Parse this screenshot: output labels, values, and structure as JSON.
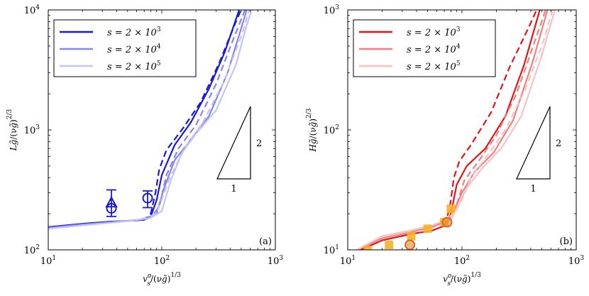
{
  "chart_data": [
    {
      "id": "a",
      "type": "line",
      "panel_label": "(a)",
      "xscale": "log",
      "yscale": "log",
      "xlim": [
        10,
        1000
      ],
      "ylim": [
        100,
        10000
      ],
      "xticks": [
        10,
        100,
        1000
      ],
      "yticks": [
        100,
        1000,
        10000
      ],
      "xlabel": "v_s^o/(ν g̃)^{1/3}",
      "ylabel": "L g̃/(ν g̃)^{2/3}",
      "slope_triangle": {
        "rise": "2",
        "run": "1"
      },
      "legend": {
        "position": "top-left",
        "entries": [
          "s = 2 × 10^3",
          "s = 2 × 10^4",
          "s = 2 × 10^5"
        ]
      },
      "series": [
        {
          "name": "s = 2 × 10^3",
          "color": "#1a1ad6",
          "style": "solid",
          "x": [
            10,
            20,
            35,
            55,
            70,
            80,
            90,
            100,
            130,
            180,
            260,
            360,
            480
          ],
          "y": [
            155,
            165,
            172,
            175,
            178,
            190,
            260,
            420,
            750,
            1150,
            2200,
            4500,
            10000
          ]
        },
        {
          "name": "s = 2 × 10^3",
          "color": "#1a1ad6",
          "style": "dashed",
          "x": [
            55,
            70,
            80,
            88,
            95,
            110,
            150,
            220,
            320,
            450,
            500
          ],
          "y": [
            175,
            178,
            200,
            300,
            470,
            680,
            1000,
            1700,
            3600,
            8000,
            10000
          ]
        },
        {
          "name": "s = 2 × 10^4",
          "color": "#8585ea",
          "style": "solid",
          "x": [
            10,
            20,
            35,
            55,
            75,
            90,
            105,
            130,
            180,
            260,
            380,
            500,
            560
          ],
          "y": [
            153,
            163,
            170,
            176,
            182,
            200,
            330,
            560,
            830,
            1300,
            3000,
            7000,
            10000
          ]
        },
        {
          "name": "s = 2 × 10^4",
          "color": "#8585ea",
          "style": "dashed",
          "x": [
            60,
            80,
            95,
            110,
            140,
            200,
            300,
            420,
            540
          ],
          "y": [
            177,
            185,
            230,
            420,
            700,
            1100,
            2400,
            5500,
            10000
          ]
        },
        {
          "name": "s = 2 × 10^5",
          "color": "#c4c4f4",
          "style": "solid",
          "x": [
            10,
            20,
            35,
            55,
            80,
            100,
            120,
            150,
            200,
            300,
            450,
            560,
            620
          ],
          "y": [
            150,
            160,
            168,
            175,
            185,
            210,
            380,
            640,
            930,
            1450,
            3500,
            7500,
            10000
          ]
        },
        {
          "name": "s = 2 × 10^5",
          "color": "#c4c4f4",
          "style": "dashed",
          "x": [
            65,
            90,
            115,
            160,
            230,
            350,
            500,
            590
          ],
          "y": [
            180,
            200,
            380,
            720,
            1150,
            2500,
            6000,
            10000
          ]
        }
      ],
      "markers": [
        {
          "shape": "circle",
          "color": "#1a1ad6",
          "x": 36,
          "y": 222,
          "err_low": 190,
          "err_high": 316
        },
        {
          "shape": "triangle",
          "color": "#1a1ad6",
          "x": 36,
          "y": 245
        },
        {
          "shape": "circle",
          "color": "#1a1ad6",
          "x": 75,
          "y": 270,
          "err_low": 225,
          "err_high": 310
        }
      ]
    },
    {
      "id": "b",
      "type": "line",
      "panel_label": "(b)",
      "xscale": "log",
      "yscale": "log",
      "xlim": [
        10,
        1000
      ],
      "ylim": [
        10,
        1000
      ],
      "xticks": [
        10,
        100,
        1000
      ],
      "yticks": [
        10,
        100,
        1000
      ],
      "xlabel": "v_s^o/(ν g̃)^{1/3}",
      "ylabel": "H g̃/(ν g̃)^{2/3}",
      "slope_triangle": {
        "rise": "2",
        "run": "1"
      },
      "legend": {
        "position": "top-left",
        "entries": [
          "s = 2 × 10^3",
          "s = 2 × 10^4",
          "s = 2 × 10^5"
        ]
      },
      "series": [
        {
          "name": "s = 2 × 10^3",
          "color": "#e41414",
          "style": "solid",
          "x": [
            13,
            20,
            35,
            55,
            72,
            80,
            90,
            110,
            160,
            240,
            350,
            480
          ],
          "y": [
            10,
            12,
            13.5,
            14.5,
            16,
            20,
            35,
            50,
            70,
            130,
            350,
            1000
          ]
        },
        {
          "name": "s = 2 × 10^3",
          "color": "#e41414",
          "style": "dashed",
          "x": [
            70,
            78,
            85,
            95,
            120,
            180,
            260,
            380,
            450
          ],
          "y": [
            16,
            22,
            40,
            55,
            75,
            140,
            330,
            700,
            1000
          ]
        },
        {
          "name": "s = 2 × 10^4",
          "color": "#ef8080",
          "style": "solid",
          "x": [
            12,
            20,
            35,
            55,
            75,
            85,
            100,
            130,
            190,
            280,
            420,
            560
          ],
          "y": [
            10,
            12.5,
            14,
            15.5,
            17.5,
            21,
            30,
            45,
            65,
            120,
            380,
            1000
          ]
        },
        {
          "name": "s = 2 × 10^4",
          "color": "#ef8080",
          "style": "dashed",
          "x": [
            75,
            90,
            105,
            140,
            200,
            300,
            420,
            540
          ],
          "y": [
            17,
            24,
            38,
            55,
            90,
            200,
            500,
            1000
          ]
        },
        {
          "name": "s = 2 × 10^5",
          "color": "#f7c2c2",
          "style": "solid",
          "x": [
            12,
            20,
            35,
            55,
            75,
            90,
            110,
            150,
            220,
            330,
            500,
            650
          ],
          "y": [
            10,
            13,
            14.5,
            16,
            18,
            22,
            33,
            48,
            70,
            130,
            420,
            1000
          ]
        },
        {
          "name": "s = 2 × 10^5",
          "color": "#f7c2c2",
          "style": "dashed",
          "x": [
            80,
            100,
            120,
            160,
            240,
            360,
            520,
            620
          ],
          "y": [
            18,
            26,
            40,
            58,
            100,
            220,
            560,
            1000
          ]
        }
      ],
      "markers": [
        {
          "shape": "square",
          "color": "#f4b42a",
          "x": 15,
          "y": 10
        },
        {
          "shape": "square",
          "color": "#f4b42a",
          "x": 23,
          "y": 11
        },
        {
          "shape": "square",
          "color": "#f4b42a",
          "x": 36,
          "y": 13
        },
        {
          "shape": "square",
          "color": "#f4b42a",
          "x": 50,
          "y": 15
        },
        {
          "shape": "square",
          "color": "#f4b42a",
          "x": 70,
          "y": 17
        },
        {
          "shape": "square",
          "color": "#f4b42a",
          "x": 80,
          "y": 22
        },
        {
          "shape": "circle",
          "color": "#d9661a",
          "x": 35,
          "y": 11
        },
        {
          "shape": "circle",
          "color": "#d9661a",
          "x": 74,
          "y": 17
        }
      ]
    }
  ]
}
